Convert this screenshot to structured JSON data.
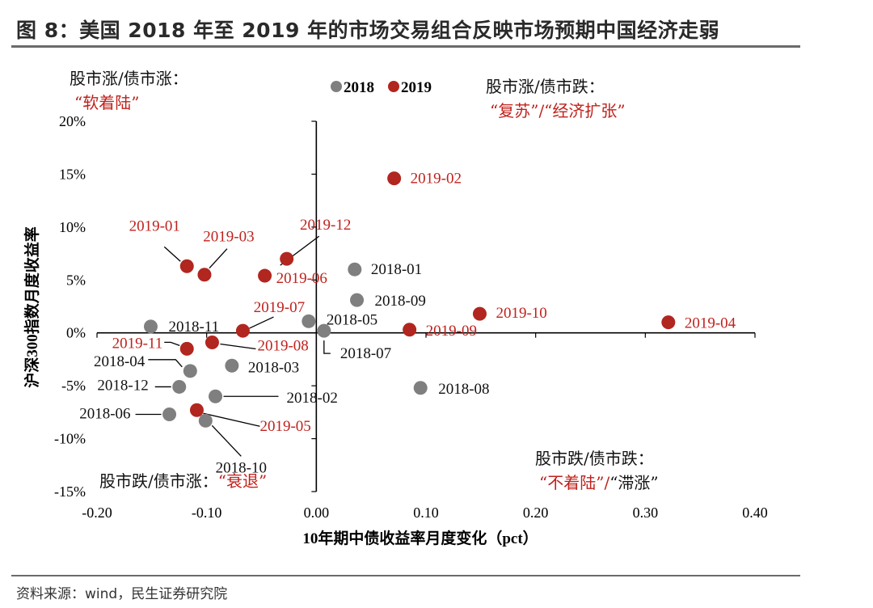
{
  "figure_title": "图 8：美国 2018 年至 2019 年的市场交易组合反映市场预期中国经济走弱",
  "source": "资料来源：wind，民生证券研究院",
  "colors": {
    "series_2018": "#7f7f7f",
    "series_2019": "#b1261f",
    "accent_red": "#c0211c",
    "axis": "#000000"
  },
  "quadrants": {
    "top_left": {
      "line1": "股市涨/债市涨：",
      "line2": "“软着陆”"
    },
    "top_right": {
      "line1": "股市涨/债市跌：",
      "line2": "“复苏”/“经济扩张”"
    },
    "bottom_left": {
      "prefix": "股市跌/债市涨：",
      "phrase": "“衰退”"
    },
    "bottom_right": {
      "line1": "股市跌/债市跌：",
      "red": "“不着陆”/",
      "black": "“滞涨”"
    }
  },
  "chart_data": {
    "type": "scatter",
    "xlabel": "10年期中债收益率月度变化（pct）",
    "ylabel": "沪深300指数月度收益率",
    "xlim": [
      -0.2,
      0.4
    ],
    "ylim": [
      -15,
      20
    ],
    "x_ticks": [
      -0.2,
      -0.1,
      0.0,
      0.1,
      0.2,
      0.3,
      0.4
    ],
    "x_tick_labels": [
      "-0.20",
      "-0.10",
      "0.00",
      "0.10",
      "0.20",
      "0.30",
      "0.40"
    ],
    "y_ticks": [
      20,
      15,
      10,
      5,
      0,
      -5,
      -10,
      -15
    ],
    "y_tick_labels": [
      "20%",
      "15%",
      "10%",
      "5%",
      "0%",
      "-5%",
      "-10%",
      "-15%"
    ],
    "legend_position": "top-center",
    "series": [
      {
        "name": "2018",
        "color": "#7f7f7f",
        "points": [
          {
            "label": "2018-01",
            "x": 0.035,
            "y": 6.0
          },
          {
            "label": "2018-02",
            "x": -0.092,
            "y": -6.0
          },
          {
            "label": "2018-03",
            "x": -0.077,
            "y": -3.1
          },
          {
            "label": "2018-04",
            "x": -0.115,
            "y": -3.6
          },
          {
            "label": "2018-05",
            "x": -0.007,
            "y": 1.1
          },
          {
            "label": "2018-06",
            "x": -0.134,
            "y": -7.7
          },
          {
            "label": "2018-07",
            "x": 0.007,
            "y": 0.2
          },
          {
            "label": "2018-08",
            "x": 0.095,
            "y": -5.2
          },
          {
            "label": "2018-09",
            "x": 0.037,
            "y": 3.1
          },
          {
            "label": "2018-10",
            "x": -0.101,
            "y": -8.3
          },
          {
            "label": "2018-11",
            "x": -0.151,
            "y": 0.6
          },
          {
            "label": "2018-12",
            "x": -0.125,
            "y": -5.1
          }
        ]
      },
      {
        "name": "2019",
        "color": "#b1261f",
        "points": [
          {
            "label": "2019-01",
            "x": -0.118,
            "y": 6.3
          },
          {
            "label": "2019-02",
            "x": 0.071,
            "y": 14.6
          },
          {
            "label": "2019-03",
            "x": -0.102,
            "y": 5.5
          },
          {
            "label": "2019-04",
            "x": 0.321,
            "y": 1.0
          },
          {
            "label": "2019-05",
            "x": -0.109,
            "y": -7.3
          },
          {
            "label": "2019-06",
            "x": -0.047,
            "y": 5.4
          },
          {
            "label": "2019-07",
            "x": -0.067,
            "y": 0.2
          },
          {
            "label": "2019-08",
            "x": -0.095,
            "y": -0.9
          },
          {
            "label": "2019-09",
            "x": 0.085,
            "y": 0.3
          },
          {
            "label": "2019-10",
            "x": 0.149,
            "y": 1.8
          },
          {
            "label": "2019-11",
            "x": -0.118,
            "y": -1.5
          },
          {
            "label": "2019-12",
            "x": -0.027,
            "y": 7.0
          }
        ]
      }
    ]
  }
}
